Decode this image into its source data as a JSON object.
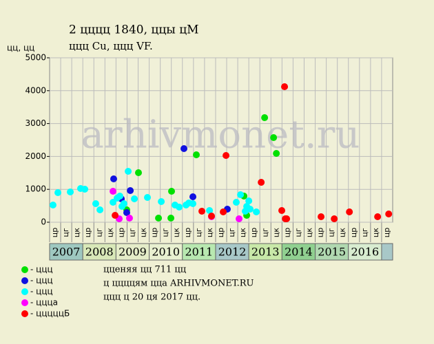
{
  "chart_data": {
    "type": "scatter",
    "title": "2 цццц 1840, ццы цМ",
    "subtitle": "ццц Cu, ццц VF.",
    "y_label": "цц, цц",
    "watermark": "arhivmonet.ru",
    "notes": [
      "цценяя цц 711 цц",
      "ц ццццям цца ARHIVMONET.RU",
      "ццц ц 20 ця 2017 цц."
    ],
    "column_labels": [
      "цр",
      "цг",
      "цк",
      "цр",
      "цг",
      "цк",
      "цр",
      "цг",
      "цк",
      "цр",
      "цг",
      "цк",
      "цр",
      "цг",
      "цк",
      "цр",
      "цг",
      "цк",
      "цр",
      "цг",
      "цк",
      "цр",
      "цг",
      "цк",
      "цр",
      "цг",
      "цк",
      "цр",
      "цг",
      "цк",
      "цр"
    ],
    "years": [
      "2007",
      "2008",
      "2009",
      "2010",
      "2011",
      "2012",
      "2013",
      "2014",
      "2015",
      "2016"
    ],
    "year_colors": [
      "#9ec8c0",
      "#d8e8b8",
      "#e4ecc8",
      "#e8f0d0",
      "#b8e8b0",
      "#a8c8c8",
      "#c8e8a8",
      "#90d090",
      "#b0d8b0",
      "#d8ecd0"
    ],
    "xlim": [
      0,
      31
    ],
    "ylim": [
      0,
      5000
    ],
    "yticks": [
      0,
      1000,
      2000,
      3000,
      4000,
      5000
    ],
    "grid": true,
    "series": [
      {
        "name": "- ццц",
        "color": "#00e000",
        "x": [
          8.03,
          9.84,
          11.02,
          10.96,
          13.26,
          17.56,
          17.81,
          19.43,
          20.24,
          20.49,
          6.97
        ],
        "values": [
          1506,
          126,
          941,
          126,
          2050,
          795,
          209,
          3180,
          2573,
          2092,
          377
        ]
      },
      {
        "name": "- ццц",
        "color": "#1010e0",
        "x": [
          5.79,
          6.48,
          7.29,
          6.97,
          12.14,
          12.95,
          16.06
        ],
        "values": [
          1318,
          711,
          962,
          293,
          2238,
          774,
          397
        ]
      },
      {
        "name": "- ццц",
        "color": "#00ffff",
        "x": [
          0.31,
          0.75,
          1.87,
          2.8,
          3.18,
          4.17,
          4.55,
          5.73,
          6.1,
          6.35,
          6.54,
          6.72,
          7.1,
          7.66,
          8.84,
          10.09,
          11.33,
          11.71,
          12.33,
          12.58,
          12.95,
          14.45,
          16.87,
          17.25,
          17.68,
          18.0,
          18.12,
          18.68,
          17.81
        ],
        "values": [
          523,
          900,
          920,
          1025,
          1004,
          565,
          377,
          607,
          732,
          795,
          481,
          565,
          1548,
          711,
          753,
          628,
          523,
          460,
          523,
          586,
          565,
          356,
          607,
          837,
          335,
          649,
          397,
          314,
          481
        ]
      },
      {
        "name": "- ццца",
        "color": "#ff00ff",
        "x": [
          5.73,
          6.29,
          7.22,
          14.63,
          17.12
        ],
        "values": [
          941,
          105,
          126,
          167,
          105
        ]
      },
      {
        "name": "- цццццБ",
        "color": "#ff0000",
        "x": [
          5.92,
          13.76,
          14.63,
          15.69,
          15.94,
          19.12,
          20.98,
          21.23,
          21.3,
          21.42,
          24.53,
          25.72,
          27.09,
          29.64,
          30.64
        ],
        "values": [
          209,
          335,
          188,
          314,
          2029,
          1213,
          356,
          4121,
          105,
          105,
          167,
          105,
          314,
          167,
          251
        ]
      }
    ]
  }
}
